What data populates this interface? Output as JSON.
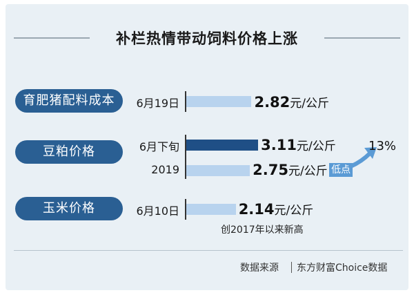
{
  "chart_data": {
    "type": "bar",
    "title": "补栏热情带动饲料价格上涨",
    "unit": "元/公斤",
    "groups": [
      {
        "name": "育肥猪配料成本",
        "rows": [
          {
            "label": "6月19日",
            "value": 2.82,
            "color": "#b8d3ee"
          }
        ]
      },
      {
        "name": "豆粕价格",
        "rows": [
          {
            "label": "6月下旬",
            "value": 3.11,
            "color": "#1f4f86"
          },
          {
            "label": "2019",
            "value": 2.75,
            "color": "#b8d3ee",
            "tag": "低点"
          }
        ],
        "change": "13%"
      },
      {
        "name": "玉米价格",
        "rows": [
          {
            "label": "6月10日",
            "value": 2.14,
            "color": "#b8d3ee"
          }
        ],
        "note": "创2017年以来新高"
      }
    ]
  },
  "value_labels": [
    "2.82",
    "3.11",
    "2.75",
    "2.14"
  ],
  "source": {
    "label": "数据来源",
    "name": "东方财富Choice数据"
  }
}
